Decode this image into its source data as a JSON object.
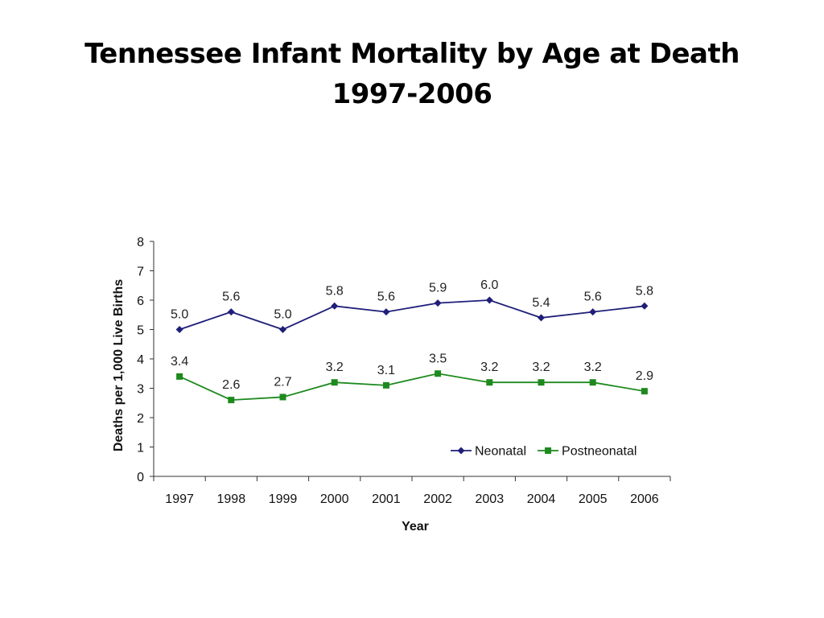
{
  "slide": {
    "title_line1": "Tennessee Infant Mortality by Age at Death",
    "title_line2": "1997-2006"
  },
  "chart_data": {
    "type": "line",
    "title": "",
    "xlabel": "Year",
    "ylabel": "Deaths per 1,000 Live Births",
    "categories": [
      "1997",
      "1998",
      "1999",
      "2000",
      "2001",
      "2002",
      "2003",
      "2004",
      "2005",
      "2006"
    ],
    "ylim": [
      0,
      8
    ],
    "yticks": [
      0,
      1,
      2,
      3,
      4,
      5,
      6,
      7,
      8
    ],
    "grid": false,
    "legend_position": "bottom-right",
    "series": [
      {
        "name": "Neonatal",
        "color": "#1f1f7a",
        "marker": "diamond",
        "values": [
          5.0,
          5.6,
          5.0,
          5.8,
          5.6,
          5.9,
          6.0,
          5.4,
          5.6,
          5.8
        ],
        "labels": [
          "5.0",
          "5.6",
          "5.0",
          "5.8",
          "5.6",
          "5.9",
          "6.0",
          "5.4",
          "5.6",
          "5.8"
        ]
      },
      {
        "name": "Postneonatal",
        "color": "#1e8a1e",
        "marker": "square",
        "values": [
          3.4,
          2.6,
          2.7,
          3.2,
          3.1,
          3.5,
          3.2,
          3.2,
          3.2,
          2.9
        ],
        "labels": [
          "3.4",
          "2.6",
          "2.7",
          "3.2",
          "3.1",
          "3.5",
          "3.2",
          "3.2",
          "3.2",
          "2.9"
        ]
      }
    ]
  }
}
